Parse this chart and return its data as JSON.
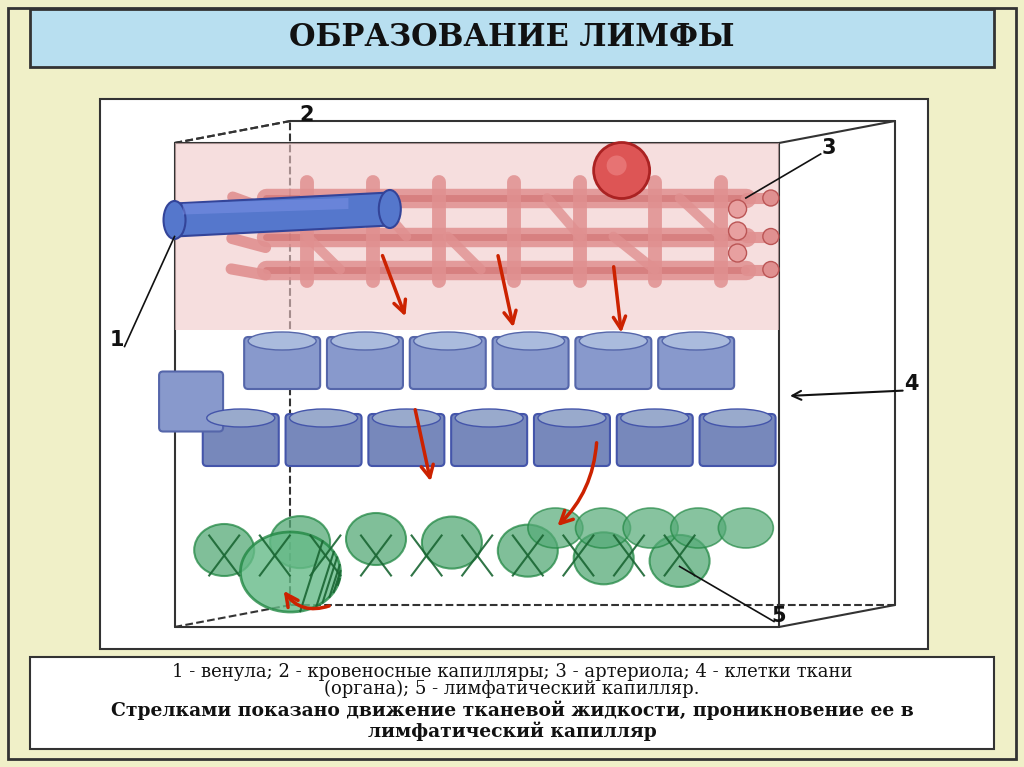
{
  "bg_color": "#f0f0c8",
  "title_bg": "#b8dff0",
  "title_text": "ОБРАЗОВАНИЕ ЛИМФЫ",
  "title_fontsize": 22,
  "bottom_line1": "1 - венула; 2 - кровеносные капилляры; 3 - артериола; 4 - клетки ткани",
  "bottom_line2": "(органа); 5 - лимфатический капилляр.",
  "bottom_line3": "Стрелками показано движение тканевой жидкости, проникновение ее в",
  "bottom_line4": "лимфатический капилляр",
  "diagram_bg": "#ffffff",
  "cell_color": "#8899cc",
  "cell_edge": "#6677aa",
  "blood_pink": "#e8a0a0",
  "venule_blue": "#5577cc",
  "lymph_green": "#44aa66",
  "lymph_dark": "#226644",
  "arrow_red": "#cc2200",
  "label_color": "#111111",
  "box_line_color": "#333333"
}
